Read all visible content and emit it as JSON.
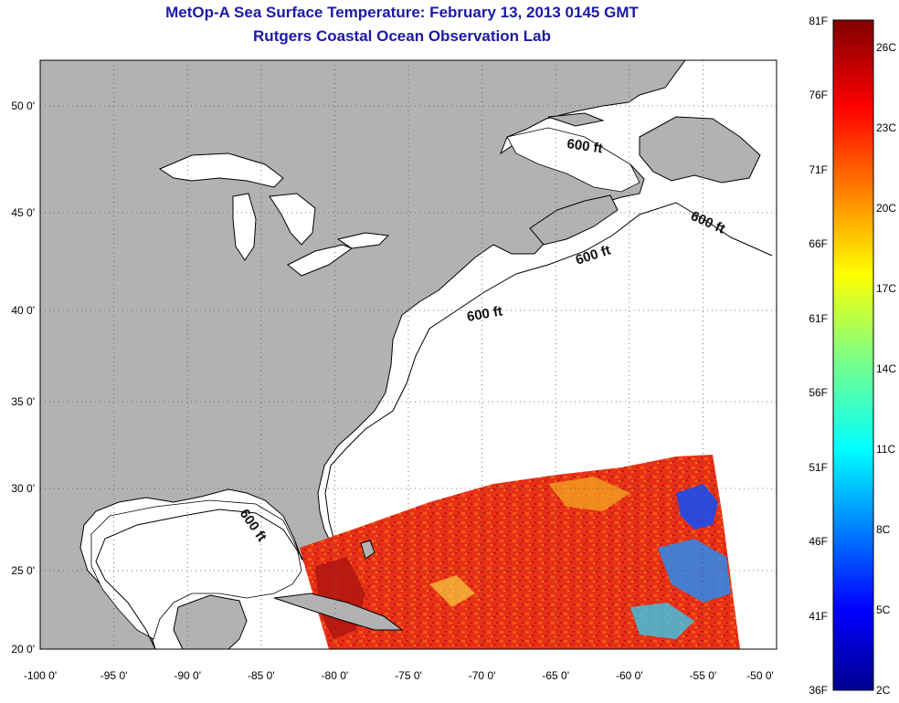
{
  "title": "MetOp-A Sea Surface Temperature:  February 13, 2013 0145 GMT",
  "subtitle": "Rutgers Coastal Ocean Observation Lab",
  "map": {
    "lon_range": [
      -100,
      -50
    ],
    "lat_range": [
      20,
      52
    ],
    "lon_ticks": [
      "-100 0'",
      "-95 0'",
      "-90 0'",
      "-85 0'",
      "-80 0'",
      "-75 0'",
      "-70 0'",
      "-65 0'",
      "-60 0'",
      "-55 0'",
      "-50 0'"
    ],
    "lat_ticks": [
      "20 0'",
      "25 0'",
      "30 0'",
      "35 0'",
      "40 0'",
      "45 0'",
      "50 0'"
    ],
    "grid": "dotted",
    "land_color": "#b2b2b2",
    "ocean_color": "#ffffff",
    "contour_labels": [
      "600 ft",
      "600 ft",
      "600 ft",
      "600 ft",
      "600 ft"
    ]
  },
  "colorbar": {
    "fahrenheit_labels": [
      "81F",
      "76F",
      "71F",
      "66F",
      "61F",
      "56F",
      "51F",
      "46F",
      "41F",
      "36F"
    ],
    "celsius_labels": [
      "26C",
      "23C",
      "20C",
      "17C",
      "14C",
      "11C",
      "8C",
      "5C",
      "2C"
    ],
    "colormap": "jet",
    "min_color": "#00008f",
    "max_color": "#800000"
  }
}
